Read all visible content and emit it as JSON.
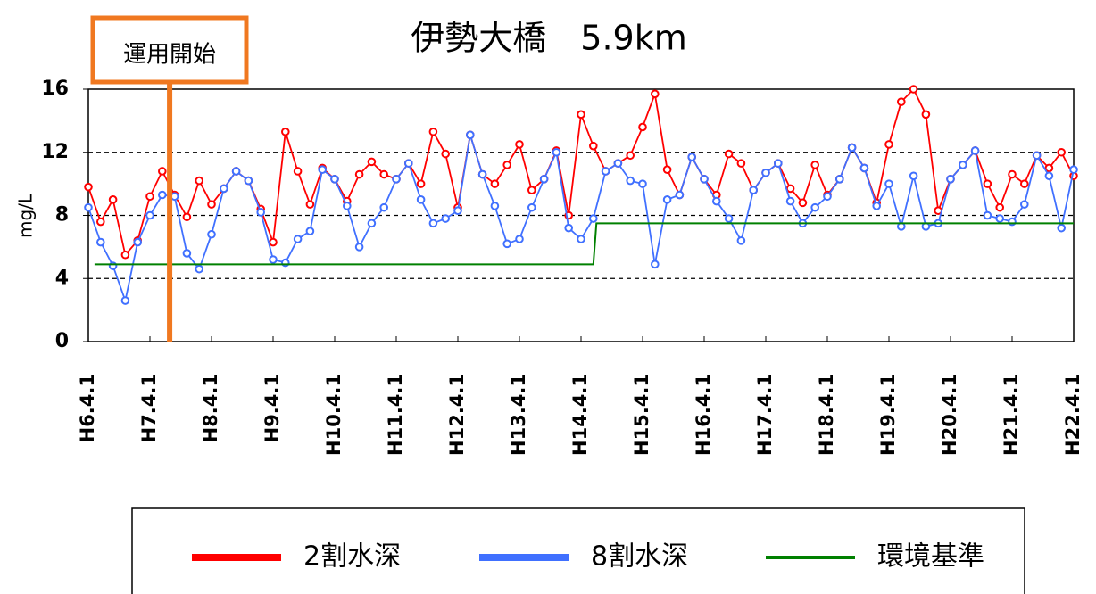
{
  "chart_data": {
    "type": "line",
    "title": "伊勢大橋　5.9km",
    "ylabel": "mg/L",
    "annotation": {
      "text": "運用開始",
      "x": 7.32,
      "color": "#f07820"
    },
    "xlim": [
      6,
      22
    ],
    "xticks": [
      {
        "value": 6,
        "label": "H6.4.1"
      },
      {
        "value": 7,
        "label": "H7.4.1"
      },
      {
        "value": 8,
        "label": "H8.4.1"
      },
      {
        "value": 9,
        "label": "H9.4.1"
      },
      {
        "value": 10,
        "label": "H10.4.1"
      },
      {
        "value": 11,
        "label": "H11.4.1"
      },
      {
        "value": 12,
        "label": "H12.4.1"
      },
      {
        "value": 13,
        "label": "H13.4.1"
      },
      {
        "value": 14,
        "label": "H14.4.1"
      },
      {
        "value": 15,
        "label": "H15.4.1"
      },
      {
        "value": 16,
        "label": "H16.4.1"
      },
      {
        "value": 17,
        "label": "H17.4.1"
      },
      {
        "value": 18,
        "label": "H18.4.1"
      },
      {
        "value": 19,
        "label": "H19.4.1"
      },
      {
        "value": 20,
        "label": "H20.4.1"
      },
      {
        "value": 21,
        "label": "H21.4.1"
      },
      {
        "value": 22,
        "label": "H22.4.1"
      }
    ],
    "ylim": [
      0,
      16
    ],
    "yticks": [
      0,
      4,
      8,
      12,
      16
    ],
    "grid": true,
    "x": [
      6.0,
      6.2,
      6.4,
      6.6,
      6.8,
      7.0,
      7.2,
      7.4,
      7.6,
      7.8,
      8.0,
      8.2,
      8.4,
      8.6,
      8.8,
      9.0,
      9.2,
      9.4,
      9.6,
      9.8,
      10.0,
      10.2,
      10.4,
      10.6,
      10.8,
      11.0,
      11.2,
      11.4,
      11.6,
      11.8,
      12.0,
      12.2,
      12.4,
      12.6,
      12.8,
      13.0,
      13.2,
      13.4,
      13.6,
      13.8,
      14.0,
      14.2,
      14.4,
      14.6,
      14.8,
      15.0,
      15.2,
      15.4,
      15.6,
      15.8,
      16.0,
      16.2,
      16.4,
      16.6,
      16.8,
      17.0,
      17.2,
      17.4,
      17.6,
      17.8,
      18.0,
      18.2,
      18.4,
      18.6,
      18.8,
      19.0,
      19.2,
      19.4,
      19.6,
      19.8,
      20.0,
      20.2,
      20.4,
      20.6,
      20.8,
      21.0,
      21.2,
      21.4,
      21.6,
      21.8,
      22.0
    ],
    "series": [
      {
        "name": "2割水深",
        "color": "#ff0000",
        "markers": true,
        "values": [
          9.8,
          7.6,
          9.0,
          5.5,
          6.4,
          9.2,
          10.8,
          9.3,
          7.9,
          10.2,
          8.7,
          9.7,
          10.8,
          10.2,
          8.4,
          6.3,
          13.3,
          10.8,
          8.7,
          11.0,
          10.3,
          8.9,
          10.6,
          11.4,
          10.6,
          10.3,
          11.3,
          10.0,
          13.3,
          11.9,
          8.5,
          13.1,
          10.6,
          10.0,
          11.2,
          12.5,
          9.6,
          10.3,
          12.1,
          8.0,
          14.4,
          12.4,
          10.8,
          11.3,
          11.8,
          13.6,
          15.7,
          10.9,
          9.3,
          11.7,
          10.3,
          9.3,
          11.9,
          11.3,
          9.6,
          10.7,
          11.3,
          9.7,
          8.8,
          11.2,
          9.3,
          10.3,
          12.3,
          11.0,
          8.8,
          12.5,
          15.2,
          16.0,
          14.4,
          8.3,
          10.3,
          11.2,
          12.1,
          10.0,
          8.5,
          10.6,
          10.0,
          11.8,
          11.0,
          12.0,
          10.5
        ]
      },
      {
        "name": "8割水深",
        "color": "#4070ff",
        "markers": true,
        "values": [
          8.5,
          6.3,
          4.8,
          2.6,
          6.3,
          8.0,
          9.3,
          9.2,
          5.6,
          4.6,
          6.8,
          9.7,
          10.8,
          10.2,
          8.2,
          5.2,
          5.0,
          6.5,
          7.0,
          10.9,
          10.3,
          8.6,
          6.0,
          7.5,
          8.5,
          10.3,
          11.3,
          9.0,
          7.5,
          7.8,
          8.3,
          13.1,
          10.6,
          8.6,
          6.2,
          6.5,
          8.5,
          10.3,
          12.0,
          7.2,
          6.5,
          7.8,
          10.8,
          11.3,
          10.2,
          10.0,
          4.9,
          9.0,
          9.3,
          11.7,
          10.3,
          8.9,
          7.8,
          6.4,
          9.6,
          10.7,
          11.3,
          8.9,
          7.5,
          8.5,
          9.2,
          10.3,
          12.3,
          11.0,
          8.6,
          10.0,
          7.3,
          10.5,
          7.3,
          7.5,
          10.3,
          11.2,
          12.1,
          8.0,
          7.8,
          7.6,
          8.7,
          11.8,
          10.5,
          7.2,
          10.9
        ]
      },
      {
        "name": "環境基準",
        "color": "#008000",
        "markers": false,
        "x": [
          6.1,
          14.2,
          14.25,
          22
        ],
        "values": [
          4.9,
          4.9,
          7.5,
          7.5
        ]
      }
    ]
  }
}
